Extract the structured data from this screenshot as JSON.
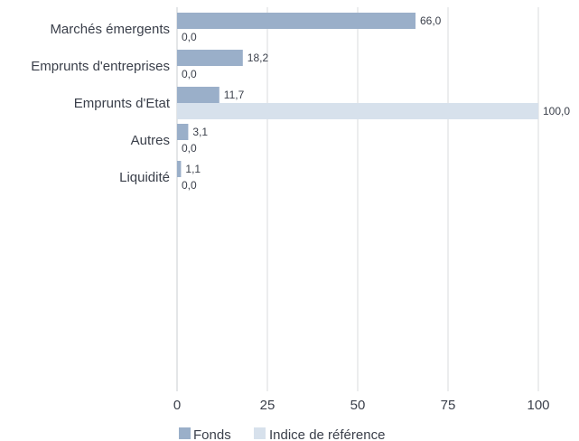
{
  "chart_data": {
    "type": "bar",
    "orientation": "horizontal",
    "categories": [
      "Marchés émergents",
      "Emprunts d'entreprises",
      "Emprunts d'Etat",
      "Autres",
      "Liquidité"
    ],
    "series": [
      {
        "name": "Fonds",
        "values": [
          66.0,
          18.2,
          11.7,
          3.1,
          1.1
        ],
        "labels": [
          "66,0",
          "18,2",
          "11,7",
          "3,1",
          "1,1"
        ],
        "color": "#9aafc9"
      },
      {
        "name": "Indice de référence",
        "values": [
          0.0,
          0.0,
          100.0,
          0.0,
          0.0
        ],
        "labels": [
          "0,0",
          "0,0",
          "100,0",
          "0,0",
          "0,0"
        ],
        "color": "#d7e1ec"
      }
    ],
    "xlim": [
      0,
      100
    ],
    "xticks": [
      "0",
      "25",
      "50",
      "75",
      "100"
    ],
    "grid": true,
    "legend_position": "bottom",
    "title": "",
    "xlabel": "",
    "ylabel": ""
  }
}
